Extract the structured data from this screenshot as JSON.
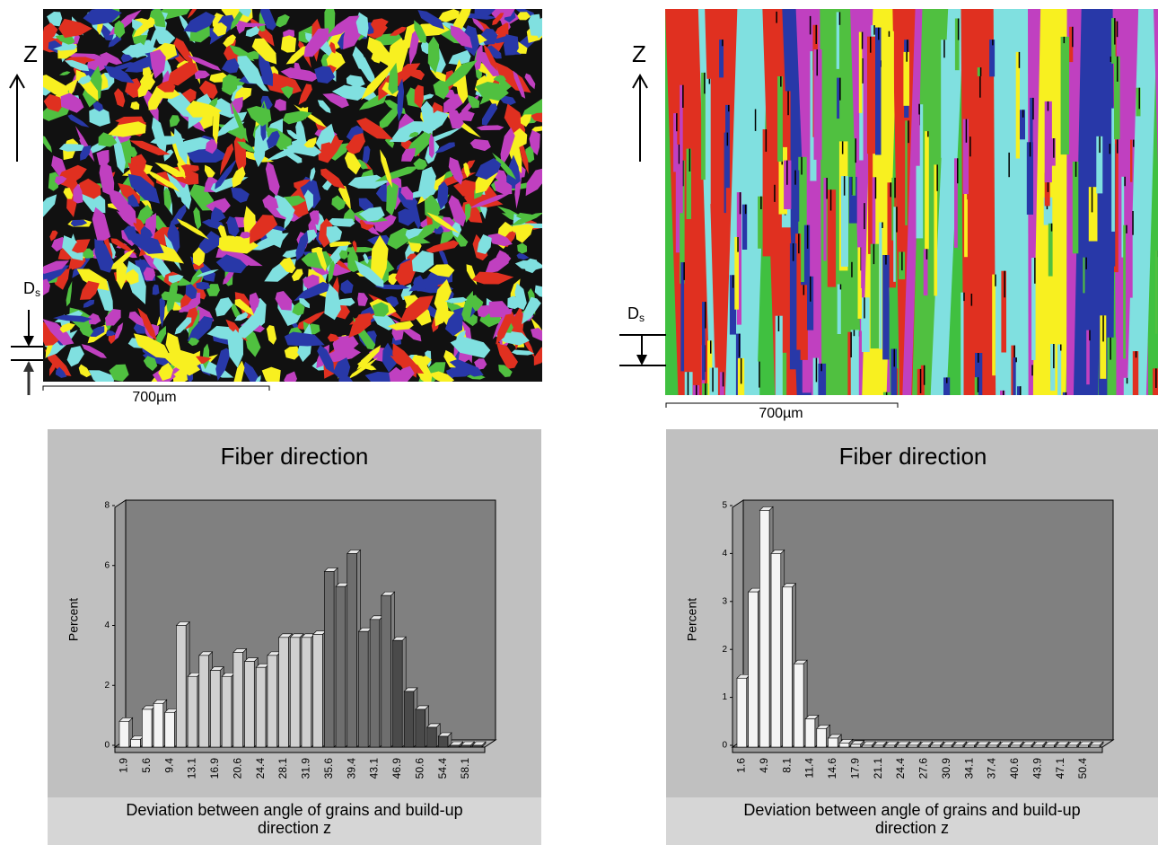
{
  "figure": {
    "panels": [
      {
        "z": "Z",
        "ds": "D",
        "ds_sub": "s",
        "scale": "700µm"
      },
      {
        "z": "Z",
        "ds": "D",
        "ds_sub": "s",
        "scale": "700µm"
      }
    ]
  },
  "chart_data": [
    {
      "type": "bar",
      "title": "Fiber direction",
      "y_label": "Percent",
      "x_label": "Deviation between angle of grains and build-up direction z",
      "categories": [
        "1.9",
        null,
        "5.6",
        null,
        "9.4",
        null,
        "13.1",
        null,
        "16.9",
        null,
        "20.6",
        null,
        "24.4",
        null,
        "28.1",
        null,
        "31.9",
        null,
        "35.6",
        null,
        "39.4",
        null,
        "43.1",
        null,
        "46.9",
        null,
        "50.6",
        null,
        "54.4",
        null,
        "58.1",
        null
      ],
      "values": [
        0.8,
        0.2,
        1.2,
        1.4,
        1.1,
        4.0,
        2.3,
        3.0,
        2.5,
        2.3,
        3.1,
        2.8,
        2.6,
        3.0,
        3.6,
        3.6,
        3.6,
        3.7,
        5.8,
        5.3,
        6.4,
        3.8,
        4.2,
        5.0,
        3.5,
        1.8,
        1.2,
        0.6,
        0.3,
        0,
        0,
        0
      ],
      "colors": [
        "#f4f4f4",
        "#f4f4f4",
        "#f4f4f4",
        "#f4f4f4",
        "#f4f4f4",
        "#d0d0d0",
        "#d0d0d0",
        "#d0d0d0",
        "#d0d0d0",
        "#d0d0d0",
        "#d0d0d0",
        "#d0d0d0",
        "#d0d0d0",
        "#d0d0d0",
        "#d0d0d0",
        "#d0d0d0",
        "#d0d0d0",
        "#d0d0d0",
        "#6e6e6e",
        "#6e6e6e",
        "#6e6e6e",
        "#6e6e6e",
        "#6e6e6e",
        "#6e6e6e",
        "#4a4a4a",
        "#4a4a4a",
        "#4a4a4a",
        "#4a4a4a",
        "#4a4a4a",
        "#4a4a4a",
        "#4a4a4a",
        "#4a4a4a"
      ],
      "ylim": [
        0,
        8
      ],
      "yticks": [
        0,
        2,
        4,
        6,
        8
      ]
    },
    {
      "type": "bar",
      "title": "Fiber direction",
      "y_label": "Percent",
      "x_label": "Deviation between angle of grains and build-up direction z",
      "categories": [
        "1.6",
        null,
        "4.9",
        null,
        "8.1",
        null,
        "11.4",
        null,
        "14.6",
        null,
        "17.9",
        null,
        "21.1",
        null,
        "24.4",
        null,
        "27.6",
        null,
        "30.9",
        null,
        "34.1",
        null,
        "37.4",
        null,
        "40.6",
        null,
        "43.9",
        null,
        "47.1",
        null,
        "50.4",
        null
      ],
      "values": [
        1.4,
        3.2,
        4.9,
        4.0,
        3.3,
        1.7,
        0.55,
        0.35,
        0.15,
        0.05,
        0.02,
        0,
        0,
        0,
        0,
        0,
        0,
        0,
        0,
        0,
        0,
        0,
        0,
        0,
        0,
        0,
        0,
        0,
        0,
        0,
        0,
        0
      ],
      "color": "#f4f4f4",
      "ylim": [
        0,
        5
      ],
      "yticks": [
        0,
        1,
        2,
        3,
        4,
        5
      ]
    }
  ]
}
